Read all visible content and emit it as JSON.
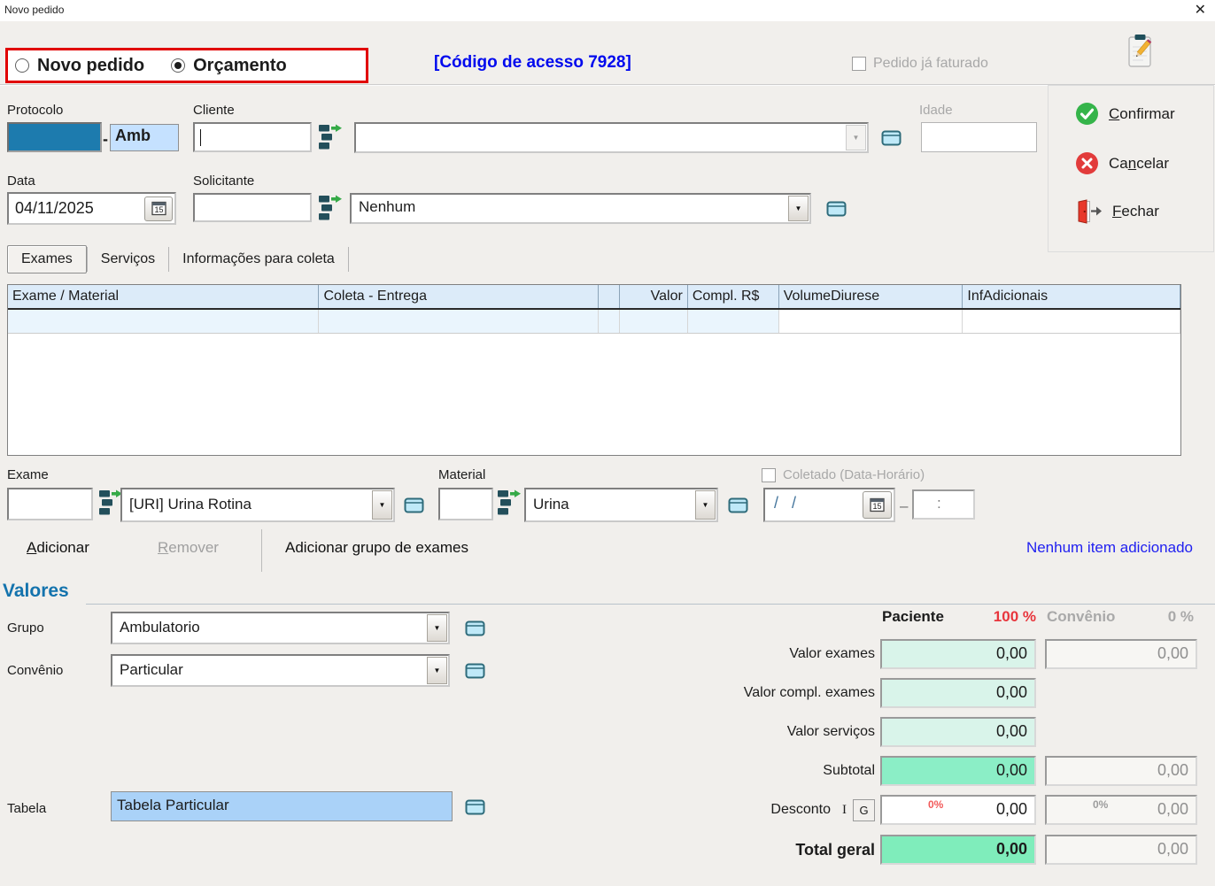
{
  "window": {
    "title": "Novo pedido",
    "close_glyph": "✕"
  },
  "header": {
    "order_type_options": [
      {
        "label": "Novo pedido",
        "selected": false
      },
      {
        "label": "Orçamento",
        "selected": true
      }
    ],
    "access_code": "[Código de acesso 7928]",
    "billed_checkbox_label": "Pedido já faturado"
  },
  "side_actions": {
    "confirm": "Confirmar",
    "cancel": "Cancelar",
    "close": "Fechar"
  },
  "order_fields": {
    "protocolo_label": "Protocolo",
    "protocolo_value": "",
    "protocolo_separator": "-",
    "protocolo_unit": "Amb",
    "cliente_label": "Cliente",
    "cliente_code": "",
    "cliente_name": "",
    "idade_label": "Idade",
    "idade_value": "",
    "data_label": "Data",
    "data_value": "04/11/2025",
    "solicitante_label": "Solicitante",
    "solicitante_code": "",
    "solicitante_name": "Nenhum"
  },
  "tabs": [
    {
      "label": "Exames",
      "active": true
    },
    {
      "label": "Serviços",
      "active": false
    },
    {
      "label": "Informações para coleta",
      "active": false
    }
  ],
  "exams_table": {
    "columns": [
      "Exame / Material",
      "Coleta - Entrega",
      "",
      "Valor",
      "Compl. R$",
      "VolumeDiurese",
      "InfAdicionais"
    ],
    "rows": []
  },
  "exam_entry": {
    "exame_label": "Exame",
    "exame_code": "",
    "exame_name": "[URI] Urina Rotina",
    "material_label": "Material",
    "material_code": "",
    "material_name": "Urina",
    "coletado_label": "Coletado (Data-Horário)",
    "coletado_date": "/ /",
    "date_time_separator": "–",
    "coletado_time": ":"
  },
  "item_actions": {
    "add": "Adicionar",
    "remove": "Remover",
    "add_group": "Adicionar grupo de exames",
    "status_message": "Nenhum item adicionado"
  },
  "valores": {
    "section_title": "Valores",
    "grupo_label": "Grupo",
    "grupo_value": "Ambulatorio",
    "convenio_label": "Convênio",
    "convenio_value": "Particular",
    "tabela_label": "Tabela",
    "tabela_value": "Tabela Particular",
    "paciente_header": "Paciente",
    "paciente_percent": "100 %",
    "convenio_header": "Convênio",
    "convenio_percent": "0 %",
    "desconto_i": "I",
    "desconto_g": "G",
    "rows": [
      {
        "label": "Valor exames",
        "paciente": "0,00",
        "convenio": "0,00"
      },
      {
        "label": "Valor compl. exames",
        "paciente": "0,00"
      },
      {
        "label": "Valor serviços",
        "paciente": "0,00"
      },
      {
        "label": "Subtotal",
        "paciente": "0,00",
        "convenio": "0,00"
      },
      {
        "label": "Desconto",
        "paciente_percent": "0%",
        "paciente": "0,00",
        "convenio_percent": "0%",
        "convenio": "0,00"
      },
      {
        "label": "Total geral",
        "paciente": "0,00",
        "convenio": "0,00"
      }
    ]
  },
  "colors": {
    "accent_blue": "#1473ad",
    "link_blue": "#0009ee",
    "protocol_fill": "#1d7bae",
    "highlight_blue": "#aad2f8",
    "table_header_blue": "#dcebf9",
    "mint_field": "#d9f4ea",
    "subtotal_green": "#8beec6",
    "total_green": "#7fedbb",
    "alert_red": "#e10000",
    "confirm_green": "#35b44a",
    "cancel_red": "#e23b3b"
  }
}
